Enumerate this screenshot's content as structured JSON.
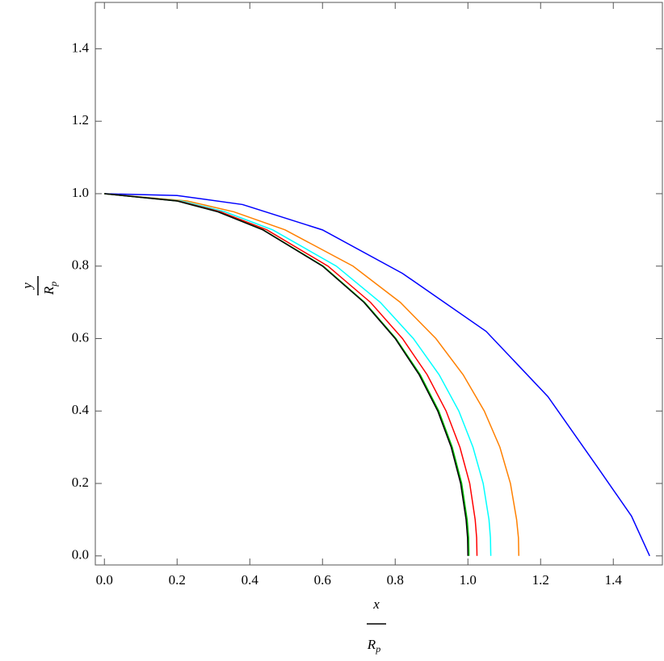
{
  "chart_data": {
    "type": "line",
    "xlabel": {
      "numerator": "x",
      "denominator": "R",
      "subscript": "p"
    },
    "ylabel": {
      "numerator": "y",
      "denominator": "R",
      "subscript": "p"
    },
    "xlim": [
      -0.025,
      1.535
    ],
    "ylim": [
      -0.025,
      1.528
    ],
    "xticks": [
      {
        "value": 0,
        "label": "0.0"
      },
      {
        "value": 0.2,
        "label": "0.2"
      },
      {
        "value": 0.4,
        "label": "0.4"
      },
      {
        "value": 0.6,
        "label": "0.6"
      },
      {
        "value": 0.8,
        "label": "0.8"
      },
      {
        "value": 1,
        "label": "1.0"
      },
      {
        "value": 1.2,
        "label": "1.2"
      },
      {
        "value": 1.4,
        "label": "1.4"
      }
    ],
    "yticks": [
      {
        "value": 0,
        "label": "0.0"
      },
      {
        "value": 0.2,
        "label": "0.2"
      },
      {
        "value": 0.4,
        "label": "0.4"
      },
      {
        "value": 0.6,
        "label": "0.6"
      },
      {
        "value": 0.8,
        "label": "0.8"
      },
      {
        "value": 1,
        "label": "1.0"
      },
      {
        "value": 1.2,
        "label": "1.2"
      },
      {
        "value": 1.4,
        "label": "1.4"
      }
    ],
    "series": [
      {
        "color": "#0000ff",
        "x": [
          0,
          0.2,
          0.38,
          0.6,
          0.82,
          1.05,
          1.22,
          1.36,
          1.45,
          1.5
        ],
        "values": [
          1,
          0.995,
          0.97,
          0.9,
          0.78,
          0.62,
          0.44,
          0.24,
          0.11,
          0
        ]
      },
      {
        "color": "#ff8000",
        "x": [
          0,
          0.227,
          0.356,
          0.497,
          0.684,
          0.814,
          0.912,
          0.987,
          1.045,
          1.088,
          1.117,
          1.134,
          1.139,
          1.14
        ],
        "values": [
          1,
          0.98,
          0.95,
          0.9,
          0.8,
          0.7,
          0.6,
          0.5,
          0.4,
          0.3,
          0.2,
          0.1,
          0.05,
          0
        ]
      },
      {
        "color": "#00ffff",
        "x": [
          0,
          0.212,
          0.332,
          0.463,
          0.638,
          0.759,
          0.85,
          0.921,
          0.975,
          1.014,
          1.042,
          1.058,
          1.062,
          1.063
        ],
        "values": [
          1,
          0.98,
          0.95,
          0.9,
          0.8,
          0.7,
          0.6,
          0.5,
          0.4,
          0.3,
          0.2,
          0.1,
          0.05,
          0
        ]
      },
      {
        "color": "#ff0000",
        "x": [
          0,
          0.204,
          0.32,
          0.447,
          0.615,
          0.732,
          0.82,
          0.888,
          0.94,
          0.978,
          1.005,
          1.02,
          1.024,
          1.025
        ],
        "values": [
          1,
          0.98,
          0.95,
          0.9,
          0.8,
          0.7,
          0.6,
          0.5,
          0.4,
          0.3,
          0.2,
          0.1,
          0.05,
          0
        ]
      },
      {
        "color": "#00c000",
        "x": [
          0,
          0.2,
          0.313,
          0.437,
          0.602,
          0.716,
          0.802,
          0.869,
          0.92,
          0.957,
          0.983,
          0.998,
          1.002,
          1.003
        ],
        "values": [
          1,
          0.98,
          0.95,
          0.9,
          0.8,
          0.7,
          0.6,
          0.5,
          0.4,
          0.3,
          0.2,
          0.1,
          0.05,
          0
        ]
      },
      {
        "color": "#000000",
        "x": [
          0,
          0.199,
          0.312,
          0.436,
          0.6,
          0.714,
          0.8,
          0.866,
          0.917,
          0.954,
          0.98,
          0.995,
          0.999,
          1.0
        ],
        "values": [
          1,
          0.98,
          0.95,
          0.9,
          0.8,
          0.7,
          0.6,
          0.5,
          0.4,
          0.3,
          0.2,
          0.1,
          0.05,
          0
        ]
      }
    ]
  }
}
